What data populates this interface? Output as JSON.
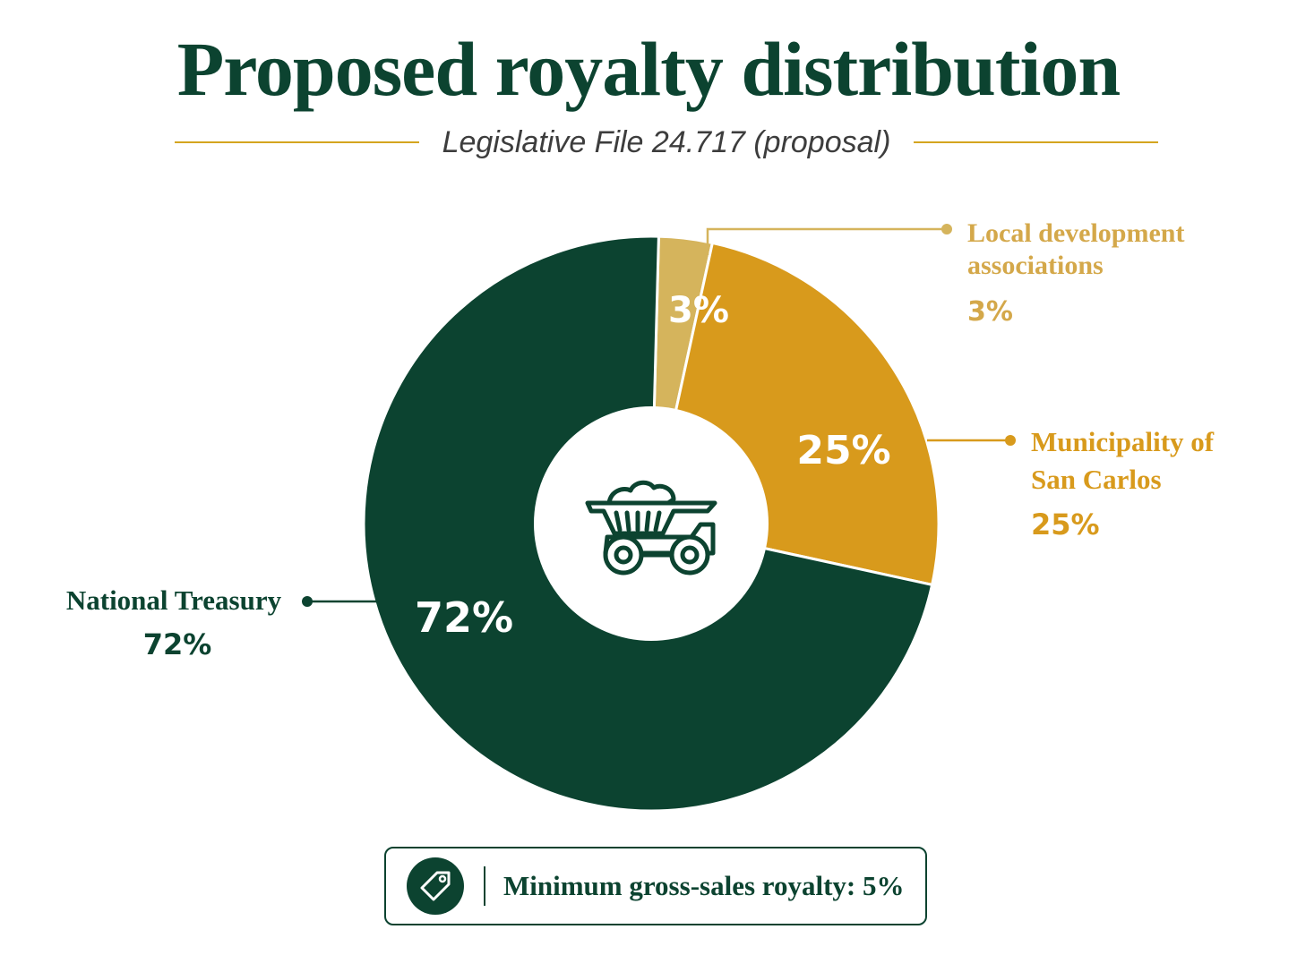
{
  "title": "Proposed royalty distribution",
  "subtitle": "Legislative File 24.717 (proposal)",
  "footer": {
    "text": "Minimum gross-sales royalty: 5%",
    "icon": "price-tag-icon"
  },
  "center_icon": "mining-dump-truck-icon",
  "colors": {
    "dark_green": "#0c4330",
    "gold": "#d89a1c",
    "light_gold": "#d5b45c",
    "text_dark": "#3d3d3d"
  },
  "chart_data": {
    "type": "pie",
    "donut": true,
    "slices": [
      {
        "label": "Local development associations",
        "value": 3,
        "value_label": "3%",
        "color": "#d5b45c"
      },
      {
        "label": "Municipality of San Carlos",
        "value": 25,
        "value_label": "25%",
        "color": "#d89a1c"
      },
      {
        "label": "National Treasury",
        "value": 72,
        "value_label": "72%",
        "color": "#0c4330"
      }
    ],
    "legend": "callouts"
  }
}
